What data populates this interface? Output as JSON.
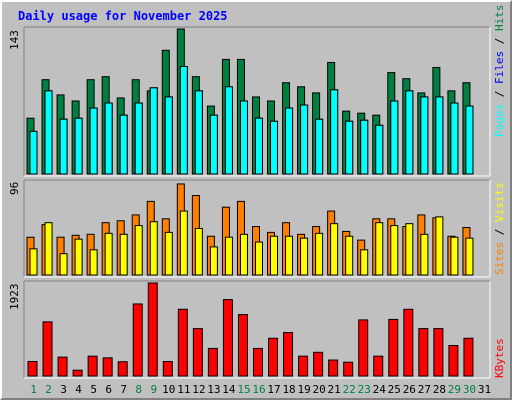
{
  "chart_data": [
    {
      "type": "bar",
      "title": "Daily usage for November 2025",
      "categories": [
        "1",
        "2",
        "3",
        "4",
        "5",
        "6",
        "7",
        "8",
        "9",
        "10",
        "11",
        "12",
        "13",
        "14",
        "15",
        "16",
        "17",
        "18",
        "19",
        "20",
        "21",
        "22",
        "23",
        "24",
        "25",
        "26",
        "27",
        "28",
        "29",
        "30",
        "31"
      ],
      "weekend_days": [
        "1",
        "2",
        "8",
        "9",
        "15",
        "16",
        "22",
        "23",
        "29",
        "30"
      ],
      "ymax_label": "143",
      "ylim": [
        0,
        143
      ],
      "right_labels": [
        "Pages",
        "Files",
        "Hits"
      ],
      "series": [
        {
          "name": "Hits",
          "color": "#008040",
          "values": [
            55,
            93,
            78,
            72,
            93,
            96,
            75,
            93,
            82,
            122,
            143,
            96,
            67,
            113,
            113,
            76,
            72,
            90,
            86,
            80,
            110,
            62,
            60,
            58,
            100,
            94,
            80,
            105,
            82,
            90,
            0
          ]
        },
        {
          "name": "Files",
          "color": "#0000ff",
          "values": [
            42,
            82,
            54,
            55,
            65,
            70,
            58,
            70,
            85,
            76,
            106,
            82,
            58,
            66,
            72,
            55,
            52,
            65,
            68,
            54,
            83,
            52,
            53,
            48,
            72,
            82,
            76,
            76,
            70,
            67,
            0
          ]
        },
        {
          "name": "Pages",
          "color": "#00ffff",
          "values": [
            42,
            82,
            54,
            55,
            65,
            70,
            58,
            70,
            85,
            76,
            106,
            82,
            58,
            86,
            72,
            55,
            52,
            65,
            68,
            54,
            83,
            52,
            53,
            48,
            72,
            82,
            76,
            76,
            70,
            67,
            0
          ]
        }
      ]
    },
    {
      "type": "bar",
      "ymax_label": "96",
      "ylim": [
        0,
        96
      ],
      "right_labels": [
        "Sites",
        "Visits"
      ],
      "series": [
        {
          "name": "Visits",
          "color": "#ff8000",
          "values": [
            39,
            52,
            39,
            41,
            42,
            54,
            56,
            62,
            76,
            58,
            94,
            82,
            40,
            70,
            76,
            50,
            44,
            54,
            42,
            50,
            66,
            45,
            36,
            58,
            58,
            50,
            62,
            59,
            40,
            49,
            0
          ]
        },
        {
          "name": "Sites",
          "color": "#ffff00",
          "values": [
            27,
            54,
            22,
            37,
            26,
            43,
            42,
            51,
            55,
            44,
            66,
            48,
            29,
            39,
            42,
            34,
            40,
            40,
            38,
            43,
            53,
            40,
            26,
            54,
            51,
            53,
            42,
            60,
            39,
            38,
            0
          ]
        }
      ]
    },
    {
      "type": "bar",
      "ymax_label": "1923",
      "ylim": [
        0,
        1923
      ],
      "right_labels": [
        "KBytes"
      ],
      "series": [
        {
          "name": "KBytes",
          "color": "#ff0000",
          "values": [
            300,
            1120,
            390,
            120,
            410,
            375,
            295,
            1490,
            1923,
            300,
            1380,
            980,
            570,
            1580,
            1270,
            570,
            780,
            900,
            410,
            490,
            330,
            285,
            1160,
            410,
            1170,
            1380,
            980,
            980,
            630,
            780,
            0
          ]
        }
      ]
    }
  ],
  "colors": {
    "title": "#0000ff",
    "axis_label": "#000000",
    "weekday": "#000000",
    "weekend": "#008040",
    "background": "#c0c0c0",
    "plot": "#c0c0c0",
    "label_visits": "#ff8000",
    "label_sites": "#ffff00",
    "label_pages": "#00ffff",
    "label_files": "#0000ff",
    "label_hits": "#008040",
    "label_kbytes": "#ff0000"
  }
}
